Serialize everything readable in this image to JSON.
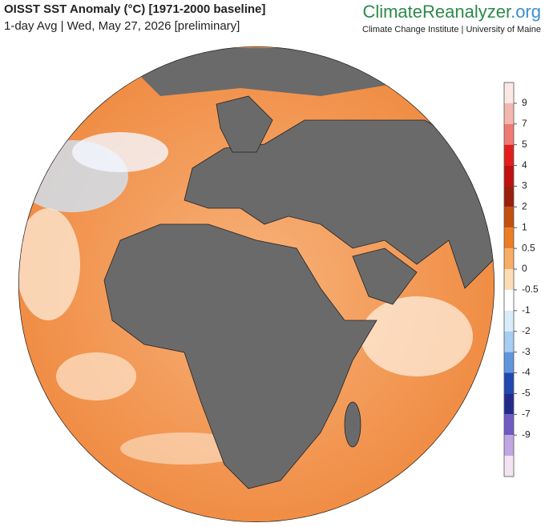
{
  "header": {
    "title": "OISST SST Anomaly (°C) [1971-2000 baseline]",
    "subtitle": "1-day Avg | Wed, May 27, 2026 [preliminary]",
    "brand_main": "ClimateReanalyzer",
    "brand_suffix": ".org",
    "brand_sub": "Climate Change Institute | University of Maine"
  },
  "colorbar": {
    "ticks": [
      9,
      7,
      5,
      4,
      3,
      2,
      1,
      0.5,
      0,
      -0.5,
      -1,
      -2,
      -3,
      -4,
      -5,
      -7,
      -9
    ],
    "colors": [
      "#f9e8e4",
      "#f4b7b0",
      "#ef7a73",
      "#e41d1d",
      "#c0110f",
      "#9a1f0c",
      "#c2500f",
      "#ec7d25",
      "#f6ad66",
      "#fcdcb5",
      "#ffffff",
      "#d8ecfa",
      "#a6cdf3",
      "#5f95dd",
      "#2048b0",
      "#222a8a",
      "#6f5bc2",
      "#c0a6e3",
      "#f2e4f2"
    ]
  }
}
